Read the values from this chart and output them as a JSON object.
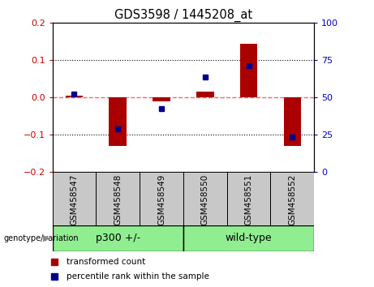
{
  "title": "GDS3598 / 1445208_at",
  "samples": [
    "GSM458547",
    "GSM458548",
    "GSM458549",
    "GSM458550",
    "GSM458551",
    "GSM458552"
  ],
  "red_bars": [
    0.005,
    -0.13,
    -0.01,
    0.015,
    0.145,
    -0.13
  ],
  "blue_dots_left_scale": [
    0.01,
    -0.085,
    -0.03,
    0.055,
    0.085,
    -0.105
  ],
  "ylim_left": [
    -0.2,
    0.2
  ],
  "ylim_right": [
    0,
    100
  ],
  "yticks_left": [
    -0.2,
    -0.1,
    0.0,
    0.1,
    0.2
  ],
  "yticks_right": [
    0,
    25,
    50,
    75,
    100
  ],
  "group_bg_color": "#90EE90",
  "sample_bg_color": "#C8C8C8",
  "bar_color": "#AA0000",
  "dot_color": "#00008B",
  "hline_color": "#FF6666",
  "left_tick_color": "#CC0000",
  "right_tick_color": "#0000CC",
  "bar_width": 0.4,
  "group1_label": "p300 +/-",
  "group2_label": "wild-type",
  "legend1": "transformed count",
  "legend2": "percentile rank within the sample",
  "genotype_label": "genotype/variation"
}
